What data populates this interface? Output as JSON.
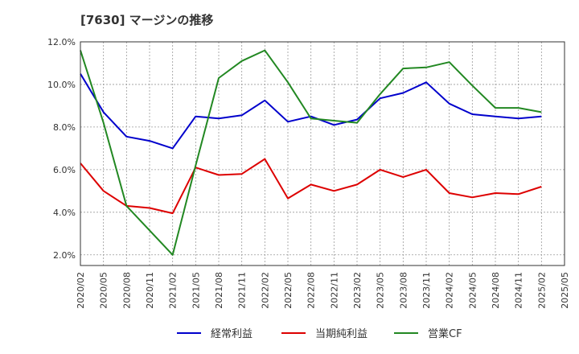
{
  "chart_data": {
    "type": "line",
    "title": "[7630]  マージンの推移",
    "x": [
      "2020/02",
      "2020/05",
      "2020/08",
      "2020/11",
      "2021/02",
      "2021/05",
      "2021/08",
      "2021/11",
      "2022/02",
      "2022/05",
      "2022/08",
      "2022/11",
      "2023/02",
      "2023/05",
      "2023/08",
      "2023/11",
      "2024/02",
      "2024/05",
      "2024/08",
      "2024/11",
      "2025/02",
      "2025/05"
    ],
    "y_ticks": [
      "2.0%",
      "4.0%",
      "6.0%",
      "8.0%",
      "10.0%",
      "12.0%"
    ],
    "ylim": [
      1.5,
      12.0
    ],
    "grid": true,
    "legend_position": "bottom",
    "series": [
      {
        "name": "経常利益",
        "color": "#0000cc",
        "values": [
          10.5,
          8.7,
          7.55,
          7.35,
          7.0,
          8.5,
          8.4,
          8.55,
          9.25,
          8.25,
          8.5,
          8.1,
          8.35,
          9.35,
          9.6,
          10.1,
          9.1,
          8.6,
          8.5,
          8.4,
          8.5,
          null
        ]
      },
      {
        "name": "当期純利益",
        "color": "#dd0000",
        "values": [
          6.3,
          5.0,
          4.3,
          4.2,
          3.95,
          6.1,
          5.75,
          5.8,
          6.5,
          4.65,
          5.3,
          5.0,
          5.3,
          6.0,
          5.65,
          6.0,
          4.9,
          4.7,
          4.9,
          4.85,
          5.2,
          null
        ]
      },
      {
        "name": "営業CF",
        "color": "#228822",
        "values": [
          11.6,
          8.2,
          4.3,
          null,
          2.0,
          6.2,
          10.3,
          11.1,
          11.6,
          10.1,
          8.4,
          8.3,
          8.2,
          9.55,
          10.75,
          10.8,
          11.05,
          9.95,
          8.9,
          8.9,
          8.7,
          null
        ]
      }
    ]
  }
}
